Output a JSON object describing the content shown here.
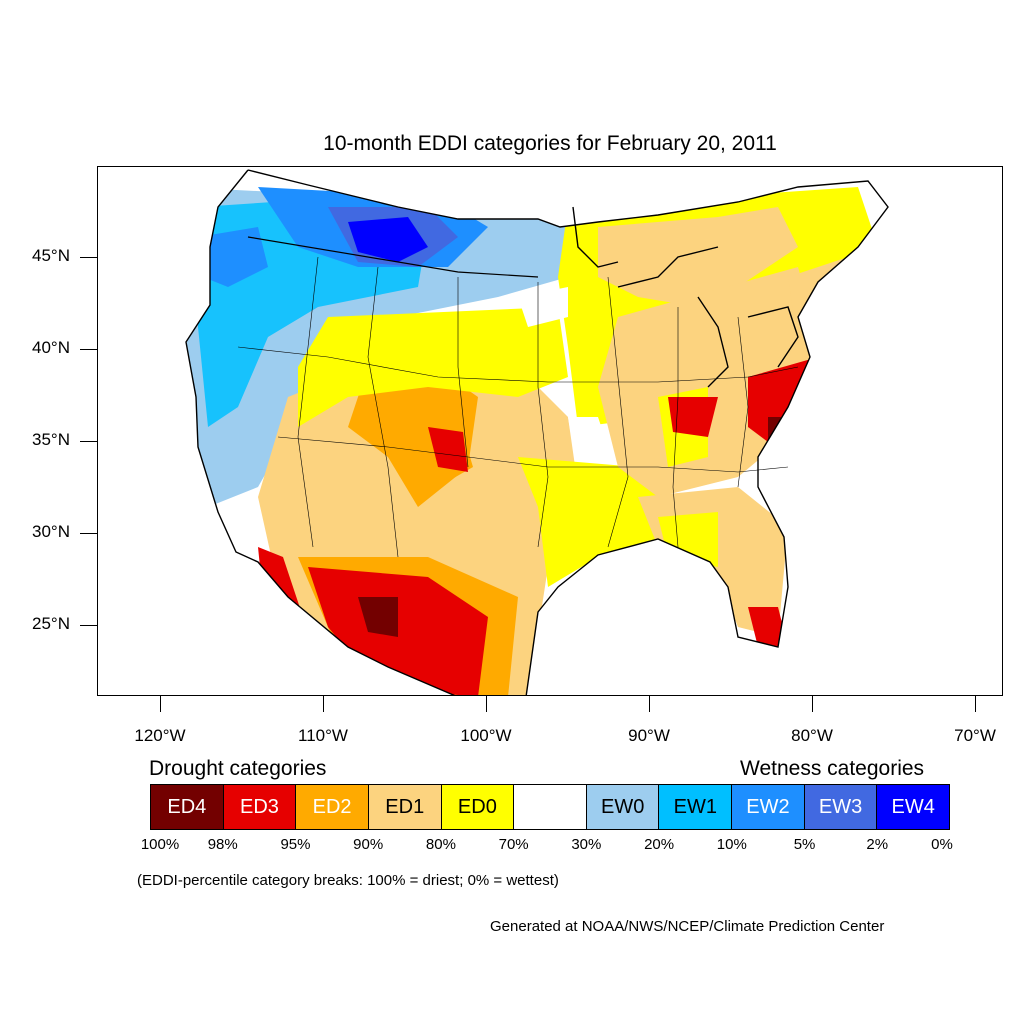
{
  "title": "10-month EDDI categories for February 20, 2011",
  "map": {
    "region": "Contiguous United States",
    "lat_labels": [
      "45°N",
      "40°N",
      "35°N",
      "30°N",
      "25°N"
    ],
    "lon_labels": [
      "120°W",
      "110°W",
      "100°W",
      "90°W",
      "80°W",
      "70°W"
    ]
  },
  "legend": {
    "drought_heading": "Drought categories",
    "wetness_heading": "Wetness categories",
    "categories": [
      {
        "label": "ED4",
        "color": "#730000",
        "text_color": "#ffffff"
      },
      {
        "label": "ED3",
        "color": "#e60000",
        "text_color": "#ffffff"
      },
      {
        "label": "ED2",
        "color": "#ffaa00",
        "text_color": "#ffffff"
      },
      {
        "label": "ED1",
        "color": "#fcd37f",
        "text_color": "#000000"
      },
      {
        "label": "ED0",
        "color": "#ffff00",
        "text_color": "#000000"
      },
      {
        "label": "",
        "color": "#ffffff",
        "text_color": "#000000"
      },
      {
        "label": "EW0",
        "color": "#9dcdef",
        "text_color": "#000000"
      },
      {
        "label": "EW1",
        "color": "#00bfff",
        "text_color": "#000000"
      },
      {
        "label": "EW2",
        "color": "#1e8fff",
        "text_color": "#ffffff"
      },
      {
        "label": "EW3",
        "color": "#4169e1",
        "text_color": "#ffffff"
      },
      {
        "label": "EW4",
        "color": "#0000ff",
        "text_color": "#ffffff"
      }
    ],
    "breaks": [
      "100%",
      "98%",
      "95%",
      "90%",
      "80%",
      "70%",
      "30%",
      "20%",
      "10%",
      "5%",
      "2%",
      "0%"
    ]
  },
  "note": "(EDDI-percentile category breaks: 100% = driest; 0% = wettest)",
  "credit": "Generated at NOAA/NWS/NCEP/Climate Prediction Center"
}
